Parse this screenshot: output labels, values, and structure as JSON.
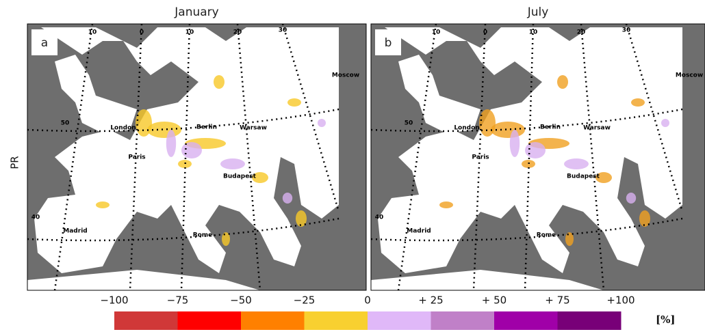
{
  "y_label": "PR",
  "panels": [
    {
      "title": "January",
      "label": "a",
      "cities": [
        "London",
        "Berlin",
        "Warsaw",
        "Paris",
        "Budapest",
        "Madrid",
        "Rome",
        "Moscow"
      ],
      "lon_labels": [
        "10",
        "0",
        "10",
        "20",
        "30"
      ],
      "lat_labels": [
        "50",
        "40"
      ]
    },
    {
      "title": "July",
      "label": "b",
      "cities": [
        "London",
        "Berlin",
        "Warsaw",
        "Paris",
        "Budapest",
        "Madrid",
        "Rome",
        "Moscow"
      ],
      "lon_labels": [
        "10",
        "0",
        "10",
        "20",
        "30"
      ],
      "lat_labels": [
        "50",
        "40"
      ]
    }
  ],
  "colorbar": {
    "tick_labels": [
      "−100",
      "−75",
      "−50",
      "−25",
      "0",
      "+ 25",
      "+ 50",
      "+ 75",
      "+100"
    ],
    "colors": [
      "#d03838",
      "#ff0000",
      "#ff8000",
      "#f8d030",
      "#e0b8f8",
      "#c080c8",
      "#a000a8",
      "#780078"
    ],
    "unit": "[%]"
  }
}
